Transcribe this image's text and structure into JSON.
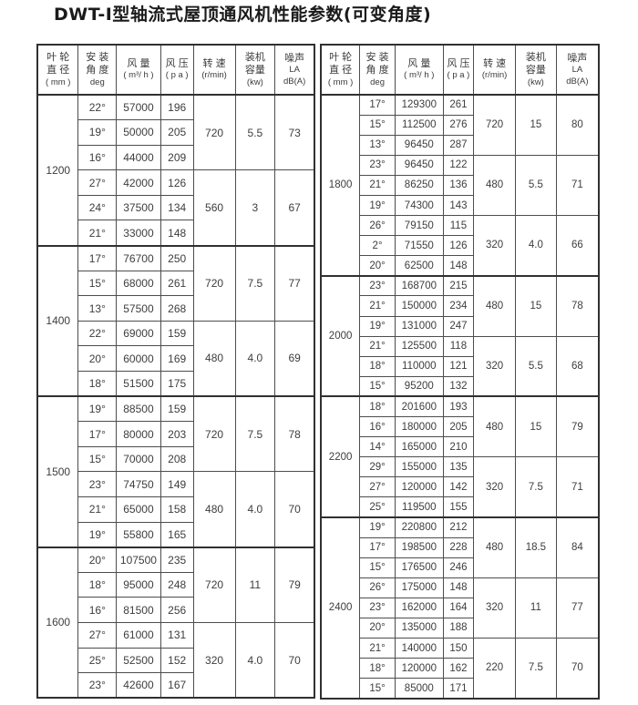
{
  "title": "DWT-I型轴流式屋顶通风机性能参数(可变角度)",
  "columns": [
    {
      "lines": [
        "叶 轮",
        "直 径",
        "( mm )"
      ]
    },
    {
      "lines": [
        "安 装",
        "角 度",
        "deg"
      ]
    },
    {
      "lines": [
        "风 量",
        "( m³/ h )"
      ]
    },
    {
      "lines": [
        "风 压",
        "( p a )"
      ]
    },
    {
      "lines": [
        "转 速",
        "(r/min)"
      ]
    },
    {
      "lines": [
        "装机",
        "容量",
        "(kw)"
      ]
    },
    {
      "lines": [
        "噪声",
        "LA",
        "dB(A)"
      ]
    }
  ],
  "tables": [
    {
      "blocks": [
        {
          "diameter": "1200",
          "groups": [
            {
              "speed": "720",
              "power": "5.5",
              "noise": "73",
              "rows": [
                [
                  "22°",
                  "57000",
                  "196"
                ],
                [
                  "19°",
                  "50000",
                  "205"
                ],
                [
                  "16°",
                  "44000",
                  "209"
                ]
              ]
            },
            {
              "speed": "560",
              "power": "3",
              "noise": "67",
              "rows": [
                [
                  "27°",
                  "42000",
                  "126"
                ],
                [
                  "24°",
                  "37500",
                  "134"
                ],
                [
                  "21°",
                  "33000",
                  "148"
                ]
              ]
            }
          ]
        },
        {
          "diameter": "1400",
          "groups": [
            {
              "speed": "720",
              "power": "7.5",
              "noise": "77",
              "rows": [
                [
                  "17°",
                  "76700",
                  "250"
                ],
                [
                  "15°",
                  "68000",
                  "261"
                ],
                [
                  "13°",
                  "57500",
                  "268"
                ]
              ]
            },
            {
              "speed": "480",
              "power": "4.0",
              "noise": "69",
              "rows": [
                [
                  "22°",
                  "69000",
                  "159"
                ],
                [
                  "20°",
                  "60000",
                  "169"
                ],
                [
                  "18°",
                  "51500",
                  "175"
                ]
              ]
            }
          ]
        },
        {
          "diameter": "1500",
          "groups": [
            {
              "speed": "720",
              "power": "7.5",
              "noise": "78",
              "rows": [
                [
                  "19°",
                  "88500",
                  "159"
                ],
                [
                  "17°",
                  "80000",
                  "203"
                ],
                [
                  "15°",
                  "70000",
                  "208"
                ]
              ]
            },
            {
              "speed": "480",
              "power": "4.0",
              "noise": "70",
              "rows": [
                [
                  "23°",
                  "74750",
                  "149"
                ],
                [
                  "21°",
                  "65000",
                  "158"
                ],
                [
                  "19°",
                  "55800",
                  "165"
                ]
              ]
            }
          ]
        },
        {
          "diameter": "1600",
          "groups": [
            {
              "speed": "720",
              "power": "11",
              "noise": "79",
              "rows": [
                [
                  "20°",
                  "107500",
                  "235"
                ],
                [
                  "18°",
                  "95000",
                  "248"
                ],
                [
                  "16°",
                  "81500",
                  "256"
                ]
              ]
            },
            {
              "speed": "320",
              "power": "4.0",
              "noise": "70",
              "rows": [
                [
                  "27°",
                  "61000",
                  "131"
                ],
                [
                  "25°",
                  "52500",
                  "152"
                ],
                [
                  "23°",
                  "42600",
                  "167"
                ]
              ]
            }
          ]
        }
      ]
    },
    {
      "blocks": [
        {
          "diameter": "1800",
          "groups": [
            {
              "speed": "720",
              "power": "15",
              "noise": "80",
              "rows": [
                [
                  "17°",
                  "129300",
                  "261"
                ],
                [
                  "15°",
                  "112500",
                  "276"
                ],
                [
                  "13°",
                  "96450",
                  "287"
                ]
              ]
            },
            {
              "speed": "480",
              "power": "5.5",
              "noise": "71",
              "rows": [
                [
                  "23°",
                  "96450",
                  "122"
                ],
                [
                  "21°",
                  "86250",
                  "136"
                ],
                [
                  "19°",
                  "74300",
                  "143"
                ]
              ]
            },
            {
              "speed": "320",
              "power": "4.0",
              "noise": "66",
              "rows": [
                [
                  "26°",
                  "79150",
                  "115"
                ],
                [
                  "2°",
                  "71550",
                  "126"
                ],
                [
                  "20°",
                  "62500",
                  "148"
                ]
              ]
            }
          ]
        },
        {
          "diameter": "2000",
          "groups": [
            {
              "speed": "480",
              "power": "15",
              "noise": "78",
              "rows": [
                [
                  "23°",
                  "168700",
                  "215"
                ],
                [
                  "21°",
                  "150000",
                  "234"
                ],
                [
                  "19°",
                  "131000",
                  "247"
                ]
              ]
            },
            {
              "speed": "320",
              "power": "5.5",
              "noise": "68",
              "rows": [
                [
                  "21°",
                  "125500",
                  "118"
                ],
                [
                  "18°",
                  "110000",
                  "121"
                ],
                [
                  "15°",
                  "95200",
                  "132"
                ]
              ]
            }
          ]
        },
        {
          "diameter": "2200",
          "groups": [
            {
              "speed": "480",
              "power": "15",
              "noise": "79",
              "rows": [
                [
                  "18°",
                  "201600",
                  "193"
                ],
                [
                  "16°",
                  "180000",
                  "205"
                ],
                [
                  "14°",
                  "165000",
                  "210"
                ]
              ]
            },
            {
              "speed": "320",
              "power": "7.5",
              "noise": "71",
              "rows": [
                [
                  "29°",
                  "155000",
                  "135"
                ],
                [
                  "27°",
                  "120000",
                  "142"
                ],
                [
                  "25°",
                  "119500",
                  "155"
                ]
              ]
            }
          ]
        },
        {
          "diameter": "2400",
          "groups": [
            {
              "speed": "480",
              "power": "18.5",
              "noise": "84",
              "rows": [
                [
                  "19°",
                  "220800",
                  "212"
                ],
                [
                  "17°",
                  "198500",
                  "228"
                ],
                [
                  "15°",
                  "176500",
                  "246"
                ]
              ]
            },
            {
              "speed": "320",
              "power": "11",
              "noise": "77",
              "rows": [
                [
                  "26°",
                  "175000",
                  "148"
                ],
                [
                  "23°",
                  "162000",
                  "164"
                ],
                [
                  "20°",
                  "135000",
                  "188"
                ]
              ]
            },
            {
              "speed": "220",
              "power": "7.5",
              "noise": "70",
              "rows": [
                [
                  "21°",
                  "140000",
                  "150"
                ],
                [
                  "18°",
                  "120000",
                  "162"
                ],
                [
                  "15°",
                  "85000",
                  "171"
                ]
              ]
            }
          ]
        }
      ]
    }
  ]
}
